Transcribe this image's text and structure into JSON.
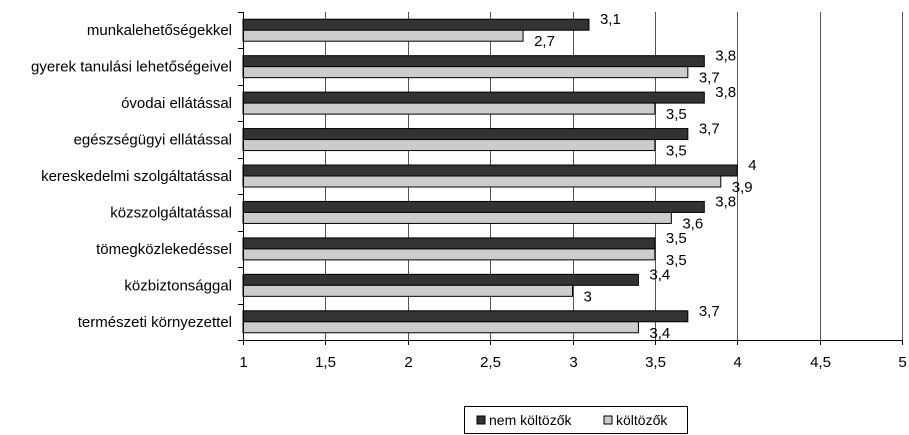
{
  "chart_data": {
    "type": "bar",
    "orientation": "horizontal",
    "title": "",
    "xlabel": "",
    "ylabel": "",
    "categories": [
      "munkalehetőségekkel",
      "gyerek tanulási lehetőségeivel",
      "óvodai ellátással",
      "egészségügyi ellátással",
      "kereskedelmi szolgáltatással",
      "közszolgáltatással",
      "tömegközlekedéssel",
      "közbiztonsággal",
      "természeti környezettel"
    ],
    "series": [
      {
        "name": "nem költözők",
        "color": "#333333",
        "values": [
          3.1,
          3.8,
          3.8,
          3.7,
          4,
          3.8,
          3.5,
          3.4,
          3.7
        ],
        "labels": [
          "3,1",
          "3,8",
          "3,8",
          "3,7",
          "4",
          "3,8",
          "3,5",
          "3,4",
          "3,7"
        ]
      },
      {
        "name": "költözők",
        "color": "#cccccc",
        "values": [
          2.7,
          3.7,
          3.5,
          3.5,
          3.9,
          3.6,
          3.5,
          3,
          3.4
        ],
        "labels": [
          "2,7",
          "3,7",
          "3,5",
          "3,5",
          "3,9",
          "3,6",
          "3,5",
          "3",
          "3,4"
        ]
      }
    ],
    "xlim": [
      1,
      5
    ],
    "xticks": [
      1,
      1.5,
      2,
      2.5,
      3,
      3.5,
      4,
      4.5,
      5
    ],
    "xtick_labels": [
      "1",
      "1,5",
      "2",
      "2,5",
      "3",
      "3,5",
      "4",
      "4,5",
      "5"
    ],
    "grid": "vertical",
    "legend": "bottom"
  }
}
